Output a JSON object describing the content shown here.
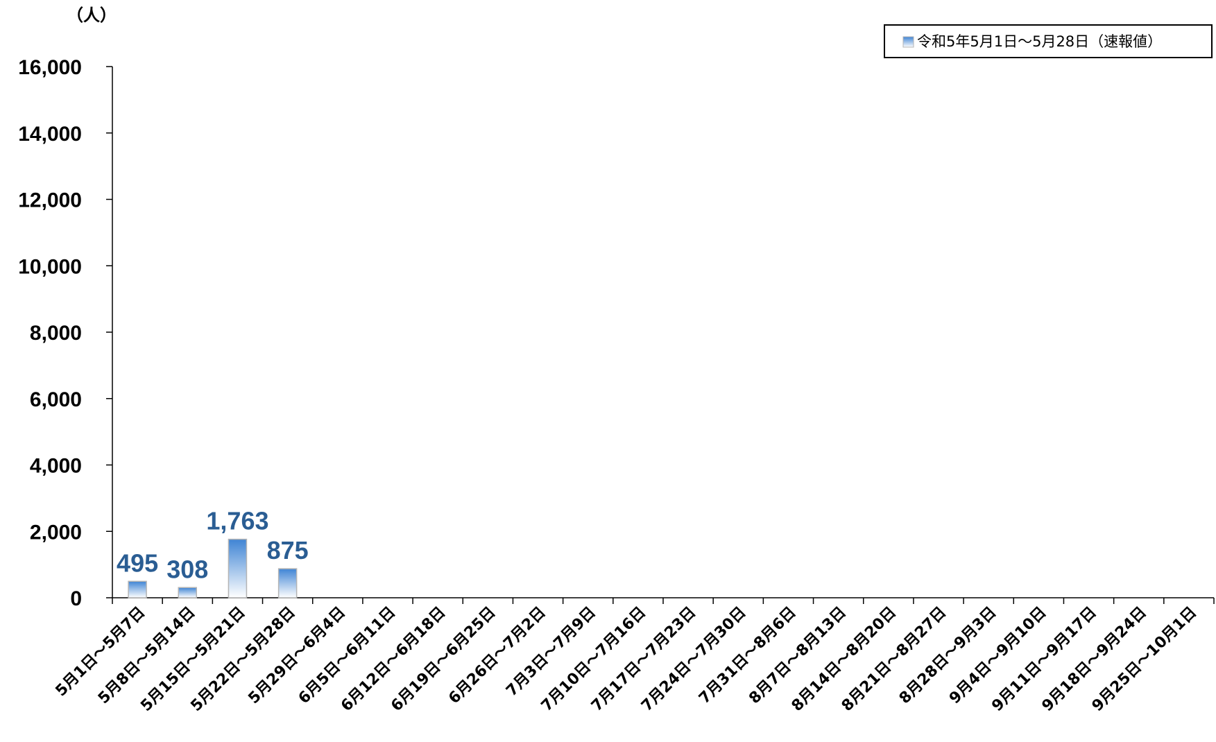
{
  "chart_data": {
    "type": "bar",
    "unit_label": "（人）",
    "ylim": [
      0,
      16000
    ],
    "yticks": [
      0,
      2000,
      4000,
      6000,
      8000,
      10000,
      12000,
      14000,
      16000
    ],
    "ytick_labels": [
      "0",
      "2,000",
      "4,000",
      "6,000",
      "8,000",
      "10,000",
      "12,000",
      "14,000",
      "16,000"
    ],
    "categories": [
      "5月1日～5月7日",
      "5月8日～5月14日",
      "5月15日～5月21日",
      "5月22日～5月28日",
      "5月29日～6月4日",
      "6月5日～6月11日",
      "6月12日～6月18日",
      "6月19日～6月25日",
      "6月26日～7月2日",
      "7月3日～7月9日",
      "7月10日～7月16日",
      "7月17日～7月23日",
      "7月24日～7月30日",
      "7月31日～8月6日",
      "8月7日～8月13日",
      "8月14日～8月20日",
      "8月21日～8月27日",
      "8月28日～9月3日",
      "9月4日～9月10日",
      "9月11日～9月17日",
      "9月18日～9月24日",
      "9月25日～10月1日"
    ],
    "series": [
      {
        "name": "令和5年5月1日～5月28日（速報値）",
        "values": [
          495,
          308,
          1763,
          875,
          null,
          null,
          null,
          null,
          null,
          null,
          null,
          null,
          null,
          null,
          null,
          null,
          null,
          null,
          null,
          null,
          null,
          null
        ],
        "data_labels": [
          "495",
          "308",
          "1,763",
          "875"
        ]
      }
    ],
    "legend_position": "top-right",
    "grid": false,
    "colors": {
      "bar_top": "#3f84d4",
      "bar_bottom": "#ffffff",
      "bar_border": "#b4b4b4",
      "data_label": "#2a5d93",
      "axis": "#000000"
    }
  }
}
